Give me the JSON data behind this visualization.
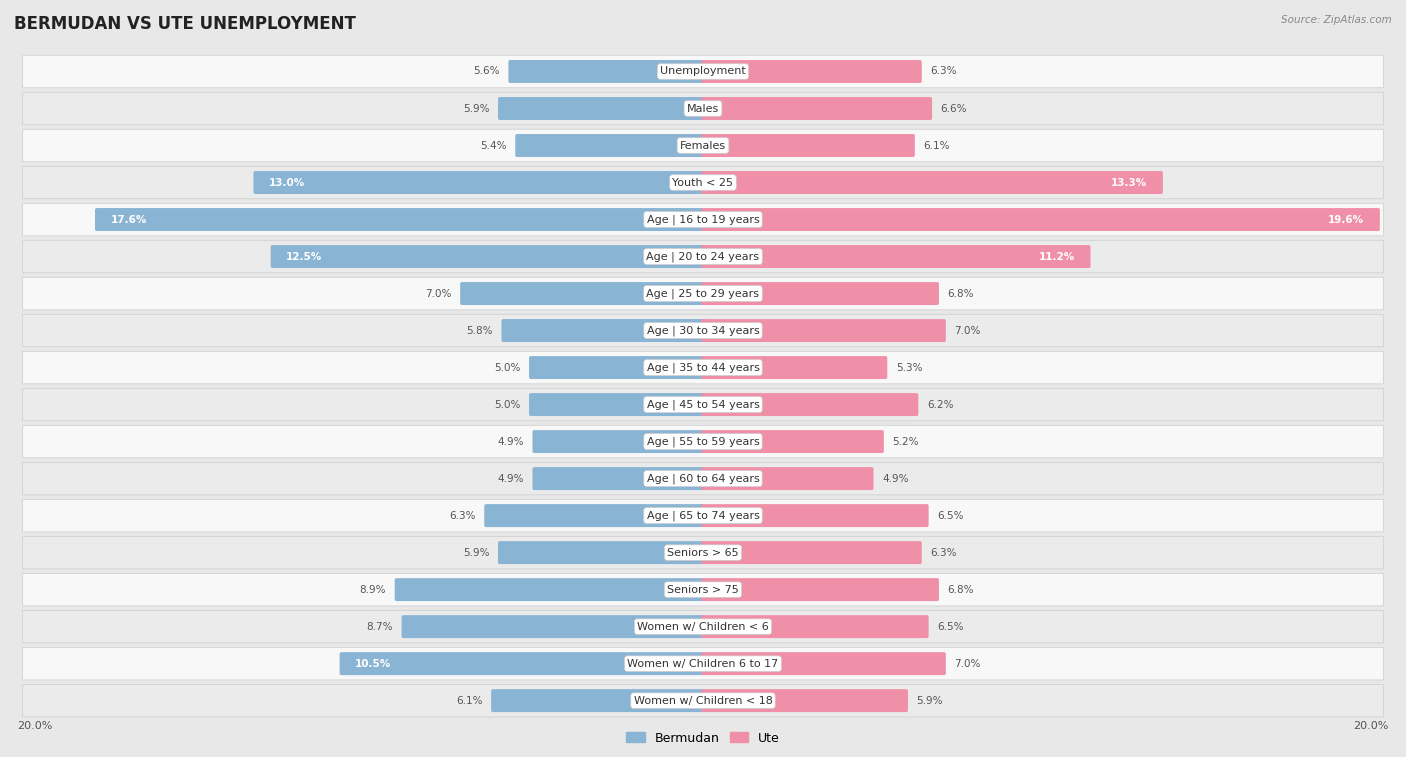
{
  "title": "BERMUDAN VS UTE UNEMPLOYMENT",
  "source": "Source: ZipAtlas.com",
  "categories": [
    "Unemployment",
    "Males",
    "Females",
    "Youth < 25",
    "Age | 16 to 19 years",
    "Age | 20 to 24 years",
    "Age | 25 to 29 years",
    "Age | 30 to 34 years",
    "Age | 35 to 44 years",
    "Age | 45 to 54 years",
    "Age | 55 to 59 years",
    "Age | 60 to 64 years",
    "Age | 65 to 74 years",
    "Seniors > 65",
    "Seniors > 75",
    "Women w/ Children < 6",
    "Women w/ Children 6 to 17",
    "Women w/ Children < 18"
  ],
  "bermudan": [
    5.6,
    5.9,
    5.4,
    13.0,
    17.6,
    12.5,
    7.0,
    5.8,
    5.0,
    5.0,
    4.9,
    4.9,
    6.3,
    5.9,
    8.9,
    8.7,
    10.5,
    6.1
  ],
  "ute": [
    6.3,
    6.6,
    6.1,
    13.3,
    19.6,
    11.2,
    6.8,
    7.0,
    5.3,
    6.2,
    5.2,
    4.9,
    6.5,
    6.3,
    6.8,
    6.5,
    7.0,
    5.9
  ],
  "bermudan_color": "#8ab4d4",
  "ute_color": "#f090a8",
  "max_val": 20.0,
  "bg_color": "#e8e8e8",
  "row_bg_white": "#f8f8f8",
  "row_bg_gray": "#ebebeb",
  "title_fontsize": 12,
  "label_fontsize": 8,
  "value_fontsize": 7.5
}
